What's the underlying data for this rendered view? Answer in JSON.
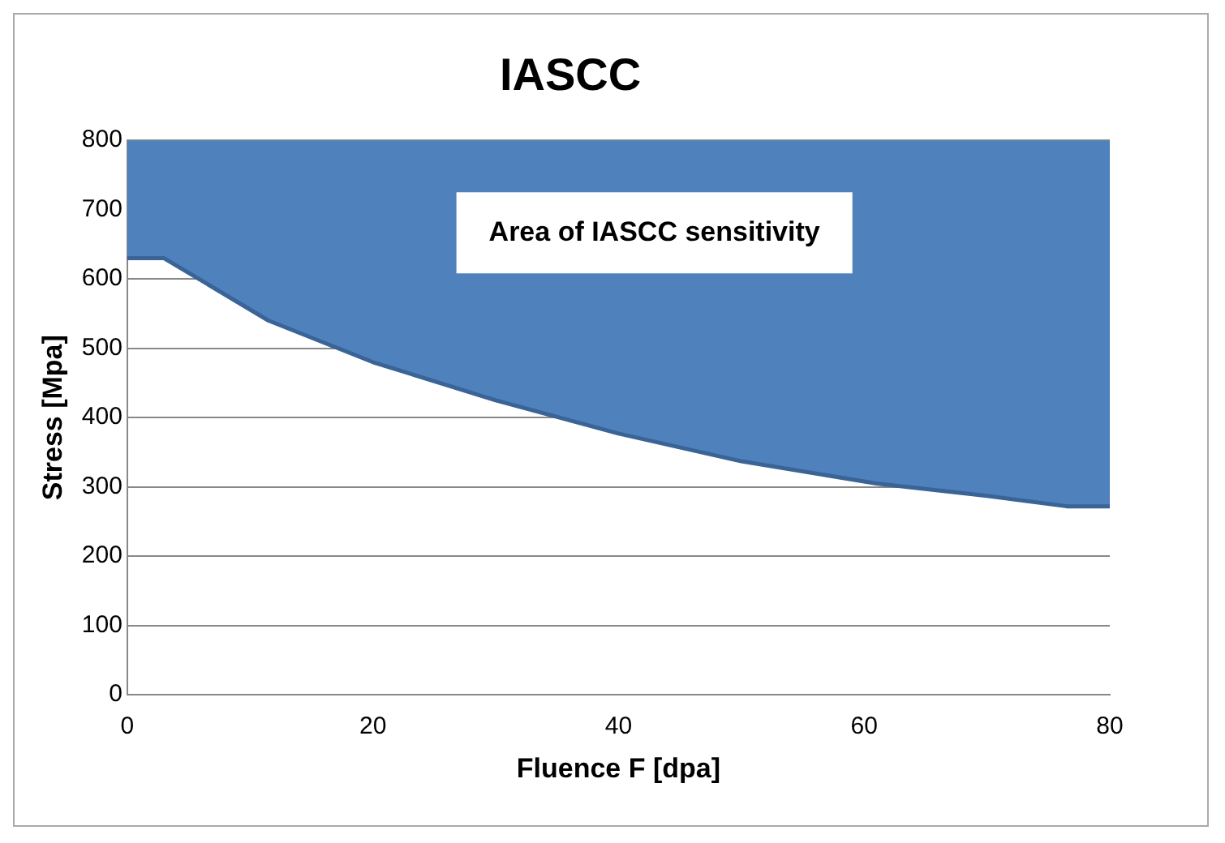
{
  "chart_data": {
    "type": "line",
    "title": "IASCC",
    "xlabel": "Fluence F [dpa]",
    "ylabel": "Stress [Mpa]",
    "x": [
      0,
      3,
      11.5,
      20,
      30,
      40,
      50,
      61,
      70,
      76.5,
      80
    ],
    "series": [
      {
        "color": "#3a6396",
        "values": [
          630,
          630,
          540,
          480,
          425,
          377,
          337,
          305,
          287,
          272,
          272
        ],
        "lower": [
          630,
          630,
          540,
          480,
          425,
          377,
          337,
          305,
          287,
          272,
          272
        ],
        "upper": [
          800,
          800,
          800,
          800,
          800,
          800,
          800,
          800,
          800,
          800,
          800
        ]
      }
    ],
    "annotations": [
      "Area of IASCC sensitivity"
    ],
    "xlim": [
      0,
      80
    ],
    "xticks": [
      0,
      20,
      40,
      60,
      80
    ],
    "ylim": [
      0,
      800
    ],
    "yticks": [
      0,
      100,
      200,
      300,
      400,
      500,
      600,
      700,
      800
    ],
    "grid": "y",
    "legend": false,
    "marker": "none"
  }
}
